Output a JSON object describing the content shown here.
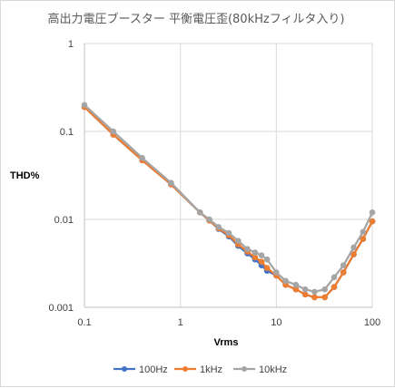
{
  "chart_data": {
    "type": "line",
    "title": "高出力電圧ブースター 平衡電圧歪(80kHzフィルタ入り)",
    "xlabel": "Vrms",
    "ylabel": "THD%",
    "xscale": "log",
    "yscale": "log",
    "xlim": [
      0.1,
      100
    ],
    "ylim": [
      0.001,
      1
    ],
    "x_ticks": [
      "0.1",
      "1",
      "10",
      "100"
    ],
    "y_ticks": [
      "1",
      "0.1",
      "0.01",
      "0.001"
    ],
    "grid": true,
    "legend_position": "bottom",
    "series": [
      {
        "name": "100Hz",
        "color": "#4472c4",
        "x": [
          0.1,
          0.2,
          0.4,
          0.8,
          1.6,
          2,
          2.5,
          3.2,
          4,
          5,
          6,
          7,
          8,
          10,
          12.5,
          16,
          20,
          25,
          32,
          40,
          50,
          64,
          80,
          100
        ],
        "y": [
          0.19,
          0.092,
          0.047,
          0.025,
          0.012,
          0.0097,
          0.0078,
          0.0064,
          0.005,
          0.0041,
          0.0035,
          0.003,
          0.0026,
          0.0023,
          0.0018,
          0.0016,
          0.0014,
          0.0013,
          0.0013,
          0.0017,
          0.0025,
          0.004,
          0.006,
          0.0095
        ]
      },
      {
        "name": "1kHz",
        "color": "#ed7d31",
        "x": [
          0.1,
          0.2,
          0.4,
          0.8,
          1.6,
          2,
          2.5,
          3.2,
          4,
          5,
          6,
          7,
          8,
          10,
          12.5,
          16,
          20,
          25,
          32,
          40,
          50,
          64,
          80,
          100
        ],
        "y": [
          0.19,
          0.092,
          0.047,
          0.025,
          0.012,
          0.0097,
          0.0079,
          0.0066,
          0.0052,
          0.0043,
          0.0037,
          0.0033,
          0.0028,
          0.0023,
          0.0018,
          0.0016,
          0.0014,
          0.0013,
          0.0013,
          0.0017,
          0.0025,
          0.004,
          0.006,
          0.0095
        ]
      },
      {
        "name": "10kHz",
        "color": "#a5a5a5",
        "x": [
          0.1,
          0.2,
          0.4,
          0.8,
          1.6,
          2,
          2.5,
          3.2,
          4,
          5,
          6,
          7,
          8,
          10,
          12.5,
          16,
          20,
          25,
          32,
          40,
          50,
          64,
          80,
          100
        ],
        "y": [
          0.2,
          0.1,
          0.05,
          0.026,
          0.012,
          0.01,
          0.0082,
          0.007,
          0.0057,
          0.0046,
          0.0042,
          0.0039,
          0.0035,
          0.0025,
          0.002,
          0.0018,
          0.0016,
          0.0015,
          0.0016,
          0.0022,
          0.003,
          0.0048,
          0.0072,
          0.012
        ]
      }
    ]
  }
}
